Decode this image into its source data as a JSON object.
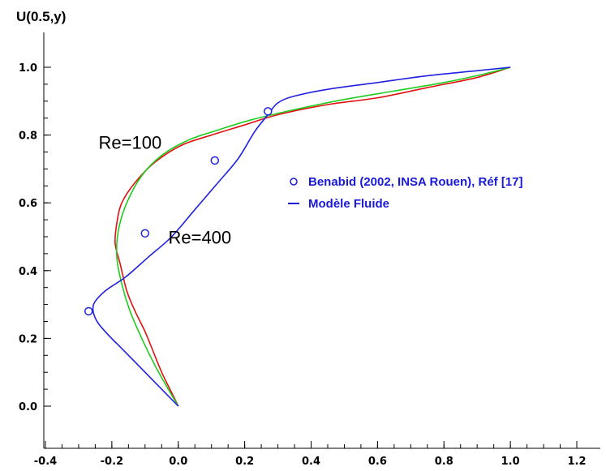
{
  "chart_data": {
    "type": "line",
    "title": "",
    "ylabel": "U(0.5,y)",
    "xlabel": "",
    "xlim": [
      -0.4,
      1.2
    ],
    "ylim": [
      0.0,
      1.0
    ],
    "x_ticks": [
      -0.4,
      -0.2,
      0.0,
      0.2,
      0.4,
      0.6,
      0.8,
      1.0,
      1.2
    ],
    "x_tick_labels": [
      "-0.4",
      "-0.2",
      "0.0",
      "0.2",
      "0.4",
      "0.6",
      "0.8",
      "1.0",
      "1.2"
    ],
    "y_ticks": [
      0.0,
      0.2,
      0.4,
      0.6,
      0.8,
      1.0
    ],
    "y_tick_labels": [
      "0.0",
      "0.2",
      "0.4",
      "0.6",
      "0.8",
      "1.0"
    ],
    "grid": false,
    "annotations": [
      {
        "text": "Re=100",
        "x": -0.24,
        "y": 0.76
      },
      {
        "text": "Re=400",
        "x": -0.03,
        "y": 0.48
      }
    ],
    "legend": {
      "placement": "right",
      "entries": [
        {
          "label": "Benabid (2002, INSA Rouen), Réf [17]",
          "marker": "circle",
          "color": "#1a1ad6"
        },
        {
          "label": "Modèle Fluide",
          "marker": "line",
          "color": "#1a1ad6"
        }
      ]
    },
    "series": [
      {
        "color": "#e01010",
        "points": [
          [
            0.0,
            0.0
          ],
          [
            -0.02,
            0.04
          ],
          [
            -0.05,
            0.1
          ],
          [
            -0.075,
            0.16
          ],
          [
            -0.1,
            0.22
          ],
          [
            -0.13,
            0.28
          ],
          [
            -0.155,
            0.34
          ],
          [
            -0.175,
            0.42
          ],
          [
            -0.19,
            0.48
          ],
          [
            -0.185,
            0.54
          ],
          [
            -0.17,
            0.6
          ],
          [
            -0.13,
            0.66
          ],
          [
            -0.07,
            0.72
          ],
          [
            0.01,
            0.77
          ],
          [
            0.1,
            0.8
          ],
          [
            0.2,
            0.83
          ],
          [
            0.3,
            0.86
          ],
          [
            0.45,
            0.89
          ],
          [
            0.6,
            0.91
          ],
          [
            0.75,
            0.94
          ],
          [
            0.9,
            0.97
          ],
          [
            1.0,
            1.0
          ]
        ]
      },
      {
        "color": "#20cc20",
        "points": [
          [
            0.0,
            0.0
          ],
          [
            -0.03,
            0.05
          ],
          [
            -0.07,
            0.12
          ],
          [
            -0.11,
            0.2
          ],
          [
            -0.145,
            0.28
          ],
          [
            -0.17,
            0.36
          ],
          [
            -0.185,
            0.44
          ],
          [
            -0.18,
            0.52
          ],
          [
            -0.155,
            0.6
          ],
          [
            -0.11,
            0.68
          ],
          [
            -0.05,
            0.74
          ],
          [
            0.03,
            0.785
          ],
          [
            0.12,
            0.815
          ],
          [
            0.22,
            0.845
          ],
          [
            0.35,
            0.875
          ],
          [
            0.5,
            0.905
          ],
          [
            0.65,
            0.93
          ],
          [
            0.8,
            0.955
          ],
          [
            0.92,
            0.98
          ],
          [
            1.0,
            1.0
          ]
        ]
      },
      {
        "color": "#2020e0",
        "points": [
          [
            0.0,
            0.0
          ],
          [
            -0.08,
            0.08
          ],
          [
            -0.16,
            0.16
          ],
          [
            -0.22,
            0.22
          ],
          [
            -0.25,
            0.26
          ],
          [
            -0.255,
            0.3
          ],
          [
            -0.22,
            0.34
          ],
          [
            -0.16,
            0.38
          ],
          [
            -0.09,
            0.44
          ],
          [
            -0.02,
            0.5
          ],
          [
            0.05,
            0.58
          ],
          [
            0.12,
            0.66
          ],
          [
            0.18,
            0.73
          ],
          [
            0.23,
            0.81
          ],
          [
            0.27,
            0.86
          ],
          [
            0.3,
            0.895
          ],
          [
            0.35,
            0.915
          ],
          [
            0.45,
            0.935
          ],
          [
            0.6,
            0.955
          ],
          [
            0.75,
            0.975
          ],
          [
            0.9,
            0.99
          ],
          [
            1.0,
            1.0
          ]
        ]
      }
    ],
    "reference_points": {
      "color": "#2020e0",
      "points": [
        [
          -0.27,
          0.28
        ],
        [
          -0.1,
          0.51
        ],
        [
          0.11,
          0.725
        ],
        [
          0.27,
          0.87
        ]
      ]
    }
  }
}
